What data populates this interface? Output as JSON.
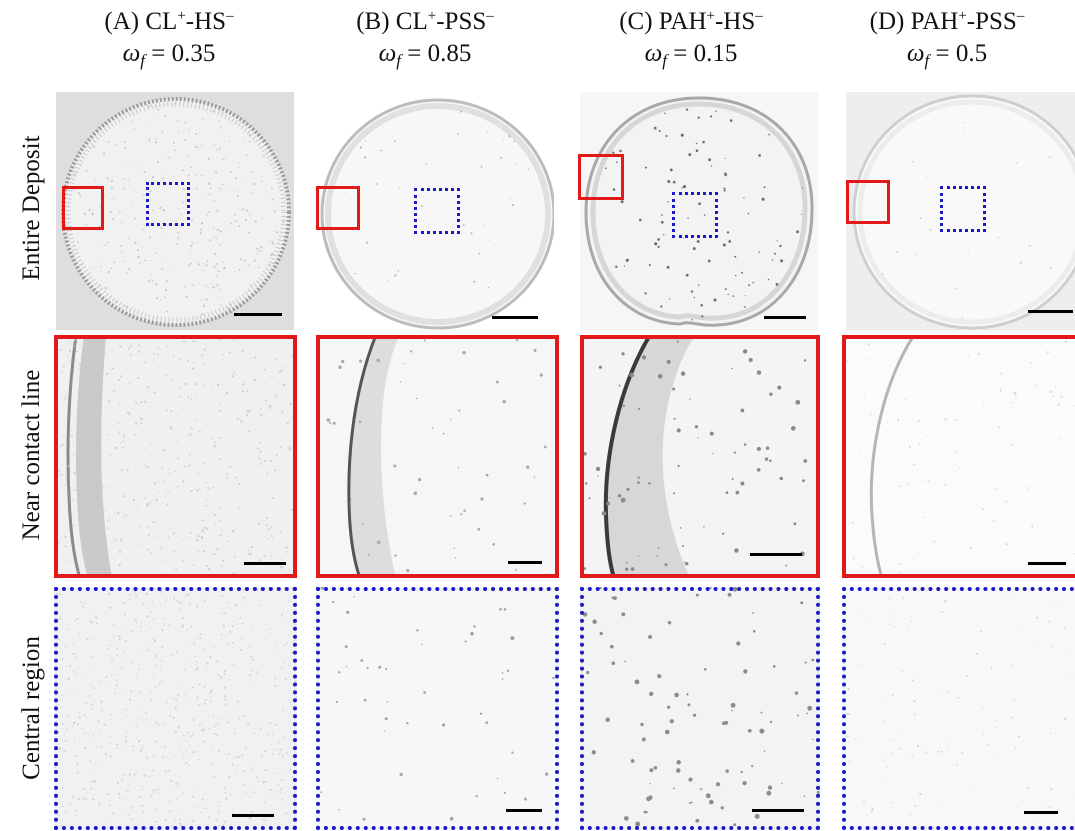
{
  "columns": [
    {
      "prefix": "(A) CL",
      "cation_sup": "+",
      "mid": "-HS",
      "anion_sup": "–",
      "omega_symbol": "ω",
      "omega_sub": "f",
      "omega_value": " = 0.35"
    },
    {
      "prefix": "(B) CL",
      "cation_sup": "+",
      "mid": "-PSS",
      "anion_sup": "–",
      "omega_symbol": "ω",
      "omega_sub": "f",
      "omega_value": " = 0.85"
    },
    {
      "prefix": "(C) PAH",
      "cation_sup": "+",
      "mid": "-HS",
      "anion_sup": "–",
      "omega_symbol": "ω",
      "omega_sub": "f",
      "omega_value": " = 0.15"
    },
    {
      "prefix": "(D) PAH",
      "cation_sup": "+",
      "mid": "-PSS",
      "anion_sup": "–",
      "omega_symbol": "ω",
      "omega_sub": "f",
      "omega_value": " = 0.5"
    }
  ],
  "rows": [
    {
      "label": "Entire Deposit"
    },
    {
      "label": "Near contact line"
    },
    {
      "label": "Central region"
    }
  ],
  "colors": {
    "near_contact_line_frame": "#e31919",
    "central_region_frame": "#1c19c8",
    "scale_bar": "#000000"
  }
}
